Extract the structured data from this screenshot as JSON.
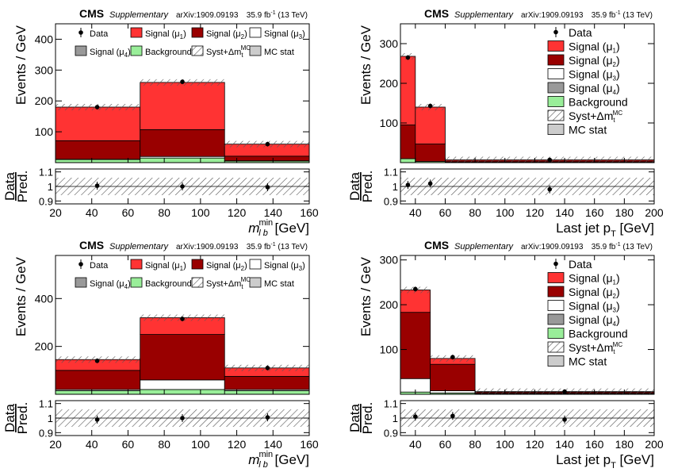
{
  "chart_data": [
    {
      "type": "bar",
      "cms_label": "CMS",
      "supplementary": "Supplementary",
      "arxiv": "arXiv:1909.09193",
      "lumi_main": "35.9 fb",
      "lumi_exp": "-1",
      "lumi_energy": "(13 TeV)",
      "ylabel": "Events / GeV",
      "ratio_label_top": "Data",
      "ratio_label_bottom": "Pred.",
      "xlabel_main": "m",
      "xlabel_sub": "l b",
      "xlabel_sup": "min",
      "xlabel_unit": "[GeV]",
      "xlim": [
        20,
        160
      ],
      "ylim": [
        0,
        450
      ],
      "yticks": [
        100,
        200,
        300,
        400
      ],
      "xticks": [
        20,
        40,
        60,
        80,
        100,
        120,
        140,
        160
      ],
      "ratio_ylim": [
        0.88,
        1.12
      ],
      "ratio_yticks": [
        "0.9",
        "1",
        "1.1"
      ],
      "bin_edges": [
        20,
        66.7,
        113.3,
        160
      ],
      "stack": [
        {
          "name": "Background",
          "values": [
            10,
            15,
            5
          ],
          "color": "#99ee99"
        },
        {
          "name": "Signal (μ4)",
          "values": [
            0,
            0,
            0
          ],
          "color": "#999999"
        },
        {
          "name": "Signal (μ3)",
          "values": [
            1,
            5,
            1
          ],
          "color": "#ffffff"
        },
        {
          "name": "Signal (μ2)",
          "values": [
            60,
            87,
            15
          ],
          "color": "#990000"
        },
        {
          "name": "Signal (μ1)",
          "values": [
            109,
            153,
            39
          ],
          "color": "#ff3333"
        }
      ],
      "data_points": {
        "x": [
          43,
          90,
          137
        ],
        "y": [
          180,
          262,
          60
        ]
      },
      "ratio_points": {
        "x": [
          43,
          90,
          137
        ],
        "y": [
          1.005,
          1.0,
          0.995
        ]
      },
      "legend_placement": "top",
      "legend": [
        {
          "label": "Data",
          "sub": "",
          "style": "data"
        },
        {
          "label": "Signal (μ",
          "sub": "1",
          "style": "sig1"
        },
        {
          "label": "Signal (μ",
          "sub": "2",
          "style": "sig2"
        },
        {
          "label": "Signal (μ",
          "sub": "3",
          "style": "sig3"
        },
        {
          "label": "Signal (μ",
          "sub": "4",
          "style": "sig4"
        },
        {
          "label": "Background",
          "sub": "",
          "style": "bkg"
        },
        {
          "label": "Syst+Δm",
          "sub": "t",
          "sup": "MC",
          "style": "syst"
        },
        {
          "label": "MC stat",
          "sub": "",
          "style": "mcstat"
        }
      ]
    },
    {
      "type": "bar",
      "cms_label": "CMS",
      "supplementary": "Supplementary",
      "arxiv": "arXiv:1909.09193",
      "lumi_main": "35.9 fb",
      "lumi_exp": "-1",
      "lumi_energy": "(13 TeV)",
      "ylabel": "Events / GeV",
      "ratio_label_top": "Data",
      "ratio_label_bottom": "Pred.",
      "xlabel_main": "Last jet p",
      "xlabel_sub": "T",
      "xlabel_sup": "",
      "xlabel_unit": "[GeV]",
      "xlim": [
        30,
        200
      ],
      "ylim": [
        0,
        350
      ],
      "yticks": [
        100,
        200,
        300
      ],
      "xticks": [
        40,
        60,
        80,
        100,
        120,
        140,
        160,
        180,
        200
      ],
      "ratio_ylim": [
        0.88,
        1.12
      ],
      "ratio_yticks": [
        "0.9",
        "1",
        "1.1"
      ],
      "bin_edges": [
        30,
        40,
        60,
        200
      ],
      "stack": [
        {
          "name": "Background",
          "values": [
            10,
            3,
            1
          ],
          "color": "#99ee99"
        },
        {
          "name": "Signal (μ4)",
          "values": [
            0,
            0,
            0
          ],
          "color": "#999999"
        },
        {
          "name": "Signal (μ3)",
          "values": [
            0,
            0,
            0
          ],
          "color": "#ffffff"
        },
        {
          "name": "Signal (μ2)",
          "values": [
            85,
            44,
            3
          ],
          "color": "#990000"
        },
        {
          "name": "Signal (μ1)",
          "values": [
            173,
            93,
            3
          ],
          "color": "#ff3333"
        }
      ],
      "data_points": {
        "x": [
          35,
          50,
          130
        ],
        "y": [
          265,
          143,
          7
        ]
      },
      "ratio_points": {
        "x": [
          35,
          50,
          130
        ],
        "y": [
          1.01,
          1.02,
          0.98
        ]
      },
      "legend_placement": "top-right",
      "legend": [
        {
          "label": "Data",
          "sub": "",
          "style": "data"
        },
        {
          "label": "Signal (μ",
          "sub": "1",
          "style": "sig1"
        },
        {
          "label": "Signal (μ",
          "sub": "2",
          "style": "sig2"
        },
        {
          "label": "Signal (μ",
          "sub": "3",
          "style": "sig3"
        },
        {
          "label": "Signal (μ",
          "sub": "4",
          "style": "sig4"
        },
        {
          "label": "Background",
          "sub": "",
          "style": "bkg"
        },
        {
          "label": "Syst+Δm",
          "sub": "t",
          "sup": "MC",
          "style": "syst"
        },
        {
          "label": "MC stat",
          "sub": "",
          "style": "mcstat"
        }
      ]
    },
    {
      "type": "bar",
      "cms_label": "CMS",
      "supplementary": "Supplementary",
      "arxiv": "arXiv:1909.09193",
      "lumi_main": "35.9 fb",
      "lumi_exp": "-1",
      "lumi_energy": "(13 TeV)",
      "ylabel": "Events / GeV",
      "ratio_label_top": "Data",
      "ratio_label_bottom": "Pred.",
      "xlabel_main": "m",
      "xlabel_sub": "l b",
      "xlabel_sup": "min",
      "xlabel_unit": "[GeV]",
      "xlim": [
        20,
        160
      ],
      "ylim": [
        0,
        580
      ],
      "yticks": [
        200,
        400
      ],
      "xticks": [
        20,
        40,
        60,
        80,
        100,
        120,
        140,
        160
      ],
      "ratio_ylim": [
        0.88,
        1.12
      ],
      "ratio_yticks": [
        "0.9",
        "1",
        "1.1"
      ],
      "bin_edges": [
        20,
        66.7,
        113.3,
        160
      ],
      "stack": [
        {
          "name": "Background",
          "values": [
            15,
            20,
            15
          ],
          "color": "#99ee99"
        },
        {
          "name": "Signal (μ4)",
          "values": [
            0,
            0,
            0
          ],
          "color": "#999999"
        },
        {
          "name": "Signal (μ3)",
          "values": [
            5,
            40,
            5
          ],
          "color": "#ffffff"
        },
        {
          "name": "Signal (μ2)",
          "values": [
            80,
            190,
            55
          ],
          "color": "#990000"
        },
        {
          "name": "Signal (μ1)",
          "values": [
            45,
            70,
            35
          ],
          "color": "#ff3333"
        }
      ],
      "data_points": {
        "x": [
          43,
          90,
          137
        ],
        "y": [
          140,
          315,
          110
        ]
      },
      "ratio_points": {
        "x": [
          43,
          90,
          137
        ],
        "y": [
          0.99,
          1.0,
          1.005
        ]
      },
      "legend_placement": "top",
      "legend": [
        {
          "label": "Data",
          "sub": "",
          "style": "data"
        },
        {
          "label": "Signal (μ",
          "sub": "1",
          "style": "sig1"
        },
        {
          "label": "Signal (μ",
          "sub": "2",
          "style": "sig2"
        },
        {
          "label": "Signal (μ",
          "sub": "3",
          "style": "sig3"
        },
        {
          "label": "Signal (μ",
          "sub": "4",
          "style": "sig4"
        },
        {
          "label": "Background",
          "sub": "",
          "style": "bkg"
        },
        {
          "label": "Syst+Δm",
          "sub": "t",
          "sup": "MC",
          "style": "syst"
        },
        {
          "label": "MC stat",
          "sub": "",
          "style": "mcstat"
        }
      ]
    },
    {
      "type": "bar",
      "cms_label": "CMS",
      "supplementary": "Supplementary",
      "arxiv": "arXiv:1909.09193",
      "lumi_main": "35.9 fb",
      "lumi_exp": "-1",
      "lumi_energy": "(13 TeV)",
      "ylabel": "Events / GeV",
      "ratio_label_top": "Data",
      "ratio_label_bottom": "Pred.",
      "xlabel_main": "Last jet p",
      "xlabel_sub": "T",
      "xlabel_sup": "",
      "xlabel_unit": "[GeV]",
      "xlim": [
        30,
        200
      ],
      "ylim": [
        0,
        310
      ],
      "yticks": [
        100,
        200,
        300
      ],
      "xticks": [
        40,
        60,
        80,
        100,
        120,
        140,
        160,
        180,
        200
      ],
      "ratio_ylim": [
        0.88,
        1.12
      ],
      "ratio_yticks": [
        "0.9",
        "1",
        "1.1"
      ],
      "bin_edges": [
        30,
        50,
        80,
        200
      ],
      "stack": [
        {
          "name": "Background",
          "values": [
            5,
            3,
            1
          ],
          "color": "#99ee99"
        },
        {
          "name": "Signal (μ4)",
          "values": [
            0,
            0,
            0
          ],
          "color": "#999999"
        },
        {
          "name": "Signal (μ3)",
          "values": [
            30,
            5,
            1
          ],
          "color": "#ffffff"
        },
        {
          "name": "Signal (μ2)",
          "values": [
            148,
            59,
            3
          ],
          "color": "#990000"
        },
        {
          "name": "Signal (μ1)",
          "values": [
            50,
            13,
            1
          ],
          "color": "#ff3333"
        }
      ],
      "data_points": {
        "x": [
          40,
          65,
          140
        ],
        "y": [
          235,
          83,
          6
        ]
      },
      "ratio_points": {
        "x": [
          40,
          65,
          140
        ],
        "y": [
          1.01,
          1.015,
          0.99
        ]
      },
      "legend_placement": "top-right",
      "legend": [
        {
          "label": "Data",
          "sub": "",
          "style": "data"
        },
        {
          "label": "Signal (μ",
          "sub": "1",
          "style": "sig1"
        },
        {
          "label": "Signal (μ",
          "sub": "2",
          "style": "sig2"
        },
        {
          "label": "Signal (μ",
          "sub": "3",
          "style": "sig3"
        },
        {
          "label": "Signal (μ",
          "sub": "4",
          "style": "sig4"
        },
        {
          "label": "Background",
          "sub": "",
          "style": "bkg"
        },
        {
          "label": "Syst+Δm",
          "sub": "t",
          "sup": "MC",
          "style": "syst"
        },
        {
          "label": "MC stat",
          "sub": "",
          "style": "mcstat"
        }
      ]
    }
  ]
}
